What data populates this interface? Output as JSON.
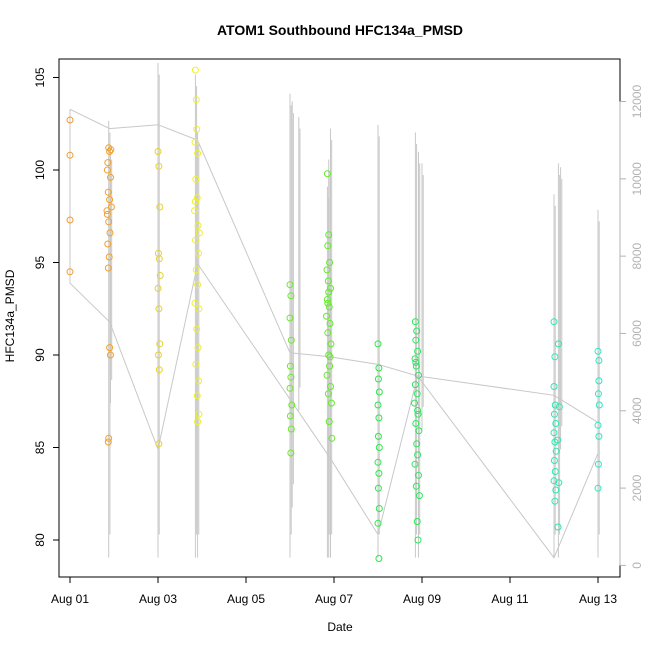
{
  "chart_data": {
    "type": "scatter",
    "title": "ATOM1 Southbound HFC134a_PMSD",
    "xlabel": "Date",
    "ylabel": "HFC134a_PMSD",
    "x_tick_labels": [
      "Aug 01",
      "Aug 03",
      "Aug 05",
      "Aug 07",
      "Aug 09",
      "Aug 11",
      "Aug 13"
    ],
    "x_tick_days": [
      1,
      3,
      5,
      7,
      9,
      11,
      13
    ],
    "xlim_days": [
      0.75,
      13.5
    ],
    "ylim": [
      78.0,
      106.0
    ],
    "y_ticks": [
      80,
      85,
      90,
      95,
      100,
      105
    ],
    "y2_ticks": [
      0,
      2000,
      4000,
      6000,
      8000,
      10000,
      12000
    ],
    "y2lim": [
      -300,
      13100
    ],
    "grid": false,
    "series": [
      {
        "name": "HFC134a_PMSD",
        "color_note": "points colored orange to cyan along the track",
        "points": [
          [
            1.0,
            102.7,
            "#f29b2c"
          ],
          [
            1.0,
            100.8,
            "#f29b2c"
          ],
          [
            1.0,
            97.3,
            "#f29b2c"
          ],
          [
            1.0,
            94.5,
            "#f29b2c"
          ],
          [
            1.88,
            101.2,
            "#f2a02a"
          ],
          [
            1.9,
            101.0,
            "#f2a02a"
          ],
          [
            1.86,
            100.4,
            "#f2a02a"
          ],
          [
            1.92,
            99.6,
            "#f2a02a"
          ],
          [
            1.87,
            98.8,
            "#f2a02a"
          ],
          [
            1.9,
            98.4,
            "#f2a02a"
          ],
          [
            1.85,
            97.6,
            "#f2a02a"
          ],
          [
            1.88,
            97.2,
            "#f2a02a"
          ],
          [
            1.91,
            96.6,
            "#f2a02a"
          ],
          [
            1.86,
            96.0,
            "#f2a02a"
          ],
          [
            1.89,
            95.3,
            "#f2a02a"
          ],
          [
            1.87,
            94.7,
            "#f2a02a"
          ],
          [
            1.9,
            90.4,
            "#f2a02a"
          ],
          [
            1.92,
            90.0,
            "#f2a02a"
          ],
          [
            1.88,
            85.5,
            "#f2a02a"
          ],
          [
            1.87,
            85.3,
            "#f2a02a"
          ],
          [
            1.93,
            101.1,
            "#f2a02a"
          ],
          [
            1.85,
            100.0,
            "#f2a02a"
          ],
          [
            1.94,
            98.0,
            "#f2a02a"
          ],
          [
            1.84,
            97.8,
            "#f2a02a"
          ],
          [
            3.0,
            101.0,
            "#e6d22e"
          ],
          [
            3.02,
            100.2,
            "#e6d22e"
          ],
          [
            3.04,
            98.0,
            "#e6d22e"
          ],
          [
            3.01,
            95.5,
            "#e6d22e"
          ],
          [
            3.03,
            95.2,
            "#e6d22e"
          ],
          [
            3.05,
            94.3,
            "#e6d22e"
          ],
          [
            3.0,
            93.6,
            "#e6d22e"
          ],
          [
            3.02,
            92.5,
            "#e6d22e"
          ],
          [
            3.04,
            90.6,
            "#e6d22e"
          ],
          [
            3.01,
            90.0,
            "#e6d22e"
          ],
          [
            3.03,
            89.2,
            "#e6d22e"
          ],
          [
            3.02,
            85.2,
            "#e6d22e"
          ],
          [
            3.85,
            105.4,
            "#f0f02a"
          ],
          [
            3.87,
            103.8,
            "#f0f02a"
          ],
          [
            3.88,
            102.2,
            "#f0f02a"
          ],
          [
            3.84,
            101.5,
            "#f0f02a"
          ],
          [
            3.9,
            100.9,
            "#f0f02a"
          ],
          [
            3.86,
            99.5,
            "#f0f02a"
          ],
          [
            3.89,
            98.5,
            "#f0f02a"
          ],
          [
            3.83,
            97.8,
            "#f0f02a"
          ],
          [
            3.91,
            97.0,
            "#f0f02a"
          ],
          [
            3.85,
            96.2,
            "#f0f02a"
          ],
          [
            3.92,
            95.5,
            "#f0f02a"
          ],
          [
            3.87,
            94.6,
            "#f0f02a"
          ],
          [
            3.9,
            93.8,
            "#f0f02a"
          ],
          [
            3.84,
            92.8,
            "#f0f02a"
          ],
          [
            3.93,
            92.5,
            "#f0f02a"
          ],
          [
            3.88,
            91.4,
            "#f0f02a"
          ],
          [
            3.91,
            90.4,
            "#f0f02a"
          ],
          [
            3.86,
            89.5,
            "#f0f02a"
          ],
          [
            3.92,
            88.6,
            "#f0f02a"
          ],
          [
            3.89,
            87.8,
            "#f0f02a"
          ],
          [
            3.93,
            86.8,
            "#f0f02a"
          ],
          [
            3.9,
            86.4,
            "#f0f02a"
          ],
          [
            3.85,
            98.3,
            "#f0f02a"
          ],
          [
            3.94,
            96.6,
            "#f0f02a"
          ],
          [
            6.0,
            93.8,
            "#6ee82a"
          ],
          [
            6.02,
            93.2,
            "#6ee82a"
          ],
          [
            6.0,
            92.0,
            "#6ee82a"
          ],
          [
            6.03,
            90.8,
            "#6ee82a"
          ],
          [
            6.01,
            89.4,
            "#6ee82a"
          ],
          [
            6.02,
            88.8,
            "#6ee82a"
          ],
          [
            6.0,
            88.2,
            "#6ee82a"
          ],
          [
            6.04,
            87.3,
            "#6ee82a"
          ],
          [
            6.01,
            86.7,
            "#6ee82a"
          ],
          [
            6.03,
            86.0,
            "#6ee82a"
          ],
          [
            6.02,
            84.7,
            "#6ee82a"
          ],
          [
            6.85,
            99.8,
            "#62ea2a"
          ],
          [
            6.88,
            96.5,
            "#62ea2a"
          ],
          [
            6.86,
            95.9,
            "#62ea2a"
          ],
          [
            6.9,
            95.0,
            "#62ea2a"
          ],
          [
            6.84,
            94.6,
            "#62ea2a"
          ],
          [
            6.87,
            94.0,
            "#62ea2a"
          ],
          [
            6.92,
            93.6,
            "#62ea2a"
          ],
          [
            6.85,
            93.0,
            "#62ea2a"
          ],
          [
            6.89,
            92.6,
            "#62ea2a"
          ],
          [
            6.83,
            92.1,
            "#62ea2a"
          ],
          [
            6.91,
            91.7,
            "#62ea2a"
          ],
          [
            6.86,
            91.2,
            "#62ea2a"
          ],
          [
            6.93,
            90.6,
            "#62ea2a"
          ],
          [
            6.88,
            90.0,
            "#62ea2a"
          ],
          [
            6.9,
            89.4,
            "#62ea2a"
          ],
          [
            6.84,
            88.9,
            "#62ea2a"
          ],
          [
            6.92,
            88.3,
            "#62ea2a"
          ],
          [
            6.87,
            87.9,
            "#62ea2a"
          ],
          [
            6.94,
            87.4,
            "#62ea2a"
          ],
          [
            6.89,
            86.4,
            "#62ea2a"
          ],
          [
            6.95,
            85.5,
            "#62ea2a"
          ],
          [
            6.86,
            92.8,
            "#62ea2a"
          ],
          [
            6.91,
            89.9,
            "#62ea2a"
          ],
          [
            6.88,
            93.4,
            "#62ea2a"
          ],
          [
            8.0,
            90.6,
            "#2ae84a"
          ],
          [
            8.02,
            89.3,
            "#2ae84a"
          ],
          [
            8.01,
            88.7,
            "#2ae84a"
          ],
          [
            8.03,
            88.0,
            "#2ae84a"
          ],
          [
            8.0,
            87.3,
            "#2ae84a"
          ],
          [
            8.02,
            86.6,
            "#2ae84a"
          ],
          [
            8.01,
            85.6,
            "#2ae84a"
          ],
          [
            8.03,
            85.0,
            "#2ae84a"
          ],
          [
            8.0,
            84.2,
            "#2ae84a"
          ],
          [
            8.02,
            83.6,
            "#2ae84a"
          ],
          [
            8.01,
            82.8,
            "#2ae84a"
          ],
          [
            8.03,
            81.7,
            "#2ae84a"
          ],
          [
            8.0,
            80.9,
            "#2ae84a"
          ],
          [
            8.02,
            79.0,
            "#2ae84a"
          ],
          [
            8.85,
            91.8,
            "#2ae85a"
          ],
          [
            8.88,
            91.3,
            "#2ae85a"
          ],
          [
            8.86,
            90.8,
            "#2ae85a"
          ],
          [
            8.9,
            90.2,
            "#2ae85a"
          ],
          [
            8.84,
            89.8,
            "#2ae85a"
          ],
          [
            8.87,
            89.4,
            "#2ae85a"
          ],
          [
            8.92,
            88.9,
            "#2ae85a"
          ],
          [
            8.85,
            88.4,
            "#2ae85a"
          ],
          [
            8.89,
            87.9,
            "#2ae85a"
          ],
          [
            8.83,
            87.4,
            "#2ae85a"
          ],
          [
            8.91,
            86.8,
            "#2ae85a"
          ],
          [
            8.86,
            86.3,
            "#2ae85a"
          ],
          [
            8.93,
            85.9,
            "#2ae85a"
          ],
          [
            8.88,
            85.2,
            "#2ae85a"
          ],
          [
            8.9,
            84.6,
            "#2ae85a"
          ],
          [
            8.84,
            84.1,
            "#2ae85a"
          ],
          [
            8.92,
            83.5,
            "#2ae85a"
          ],
          [
            8.87,
            82.9,
            "#2ae85a"
          ],
          [
            8.94,
            82.4,
            "#2ae85a"
          ],
          [
            8.89,
            81.0,
            "#2ae85a"
          ],
          [
            8.91,
            80.0,
            "#2ae85a"
          ],
          [
            8.86,
            89.6,
            "#2ae85a"
          ],
          [
            8.9,
            87.0,
            "#2ae85a"
          ],
          [
            12.0,
            91.8,
            "#2ae8b4"
          ],
          [
            12.02,
            89.9,
            "#2ae8b4"
          ],
          [
            12.0,
            88.3,
            "#2ae8b4"
          ],
          [
            12.03,
            87.3,
            "#2ae8b4"
          ],
          [
            12.01,
            86.8,
            "#2ae8b4"
          ],
          [
            12.04,
            86.3,
            "#2ae8b4"
          ],
          [
            12.0,
            85.8,
            "#2ae8b4"
          ],
          [
            12.02,
            85.3,
            "#2ae8b4"
          ],
          [
            12.05,
            84.8,
            "#2ae8b4"
          ],
          [
            12.01,
            84.3,
            "#2ae8b4"
          ],
          [
            12.03,
            83.7,
            "#2ae8b4"
          ],
          [
            12.0,
            83.2,
            "#2ae8b4"
          ],
          [
            12.04,
            82.7,
            "#2ae8b4"
          ],
          [
            12.02,
            82.1,
            "#2ae8b4"
          ],
          [
            12.1,
            90.6,
            "#2ae8b4"
          ],
          [
            12.12,
            87.2,
            "#2ae8b4"
          ],
          [
            12.08,
            85.4,
            "#2ae8b4"
          ],
          [
            12.11,
            83.1,
            "#2ae8b4"
          ],
          [
            12.09,
            80.7,
            "#2ae8b4"
          ],
          [
            13.0,
            90.2,
            "#2ae8c4"
          ],
          [
            13.02,
            88.6,
            "#2ae8c4"
          ],
          [
            13.01,
            87.9,
            "#2ae8c4"
          ],
          [
            13.03,
            87.3,
            "#2ae8c4"
          ],
          [
            13.0,
            86.2,
            "#2ae8c4"
          ],
          [
            13.02,
            85.6,
            "#2ae8c4"
          ],
          [
            13.01,
            84.1,
            "#2ae8c4"
          ],
          [
            13.0,
            82.8,
            "#2ae8c4"
          ],
          [
            13.02,
            89.7,
            "#2ae8c4"
          ]
        ]
      },
      {
        "name": "secondary-axis-track",
        "color": "#c8c8c8",
        "track_points": [
          [
            1.0,
            11800
          ],
          [
            1.9,
            11300
          ],
          [
            3.0,
            11400
          ],
          [
            3.9,
            11000
          ],
          [
            6.0,
            5500
          ],
          [
            6.9,
            5400
          ],
          [
            8.0,
            5200
          ],
          [
            8.9,
            4900
          ],
          [
            12.0,
            4400
          ],
          [
            13.0,
            3700
          ],
          [
            13.0,
            2900
          ],
          [
            12.0,
            200
          ],
          [
            8.9,
            4900
          ],
          [
            8.0,
            800
          ],
          [
            6.9,
            2800
          ],
          [
            6.0,
            4300
          ],
          [
            3.9,
            7800
          ],
          [
            3.0,
            3000
          ],
          [
            1.9,
            6300
          ],
          [
            1.0,
            7300
          ],
          [
            1.0,
            9000
          ],
          [
            1.0,
            11800
          ]
        ],
        "bursts": [
          [
            1.88,
            200,
            11500
          ],
          [
            1.92,
            4200,
            10800
          ],
          [
            3.0,
            200,
            13000
          ],
          [
            3.85,
            200,
            12700
          ],
          [
            3.9,
            200,
            11200
          ],
          [
            6.0,
            200,
            12200
          ],
          [
            6.05,
            1500,
            12000
          ],
          [
            6.2,
            4000,
            11600
          ],
          [
            6.85,
            200,
            9800
          ],
          [
            6.88,
            200,
            10500
          ],
          [
            6.92,
            200,
            11300
          ],
          [
            8.0,
            200,
            11400
          ],
          [
            8.85,
            200,
            11200
          ],
          [
            8.92,
            200,
            10700
          ],
          [
            9.0,
            3500,
            10400
          ],
          [
            12.0,
            200,
            9600
          ],
          [
            12.1,
            200,
            10400
          ],
          [
            12.15,
            3000,
            10300
          ],
          [
            13.0,
            200,
            9200
          ]
        ]
      }
    ]
  }
}
